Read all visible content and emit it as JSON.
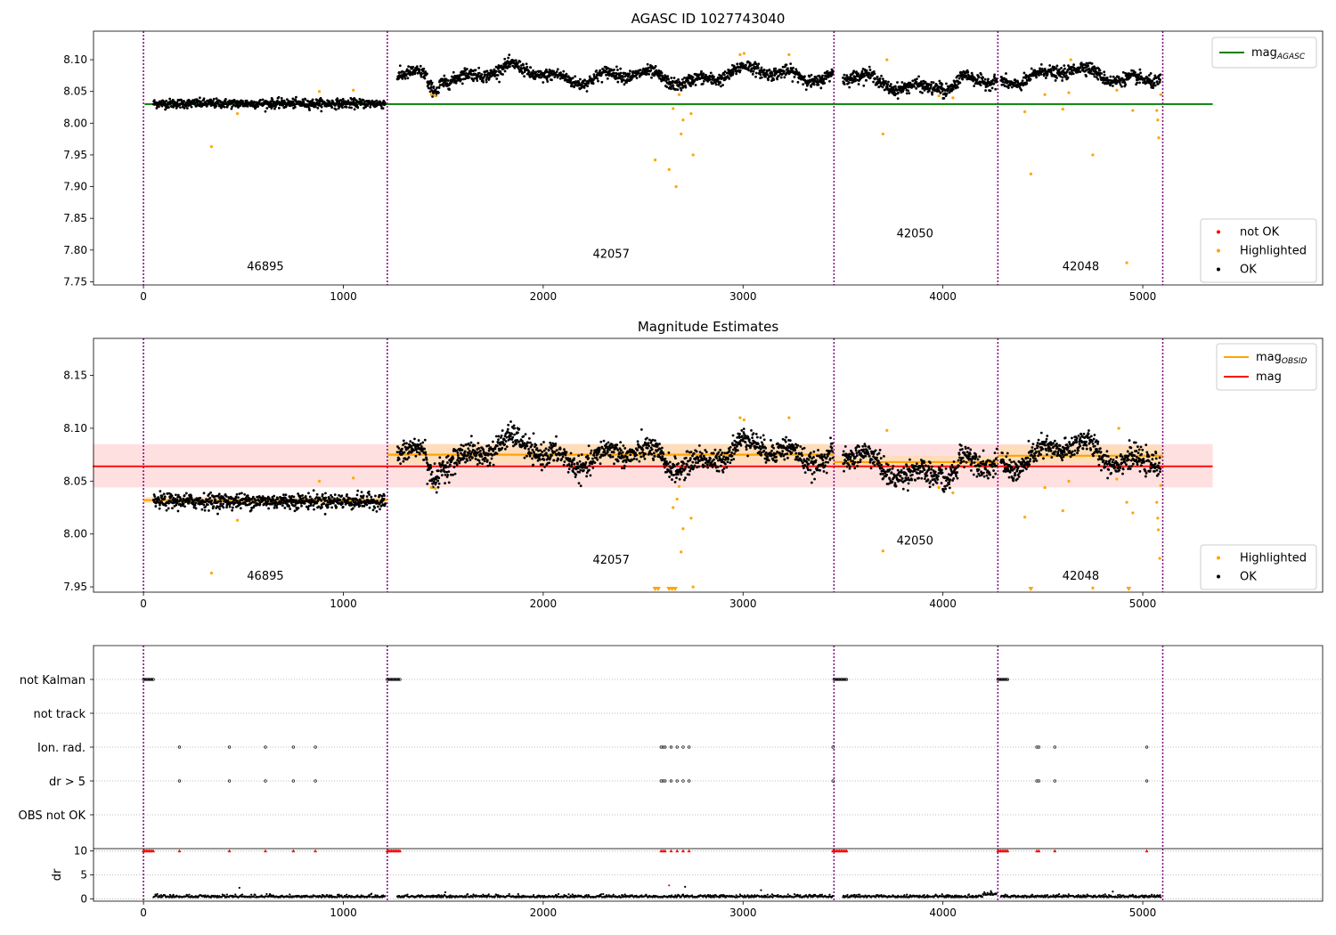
{
  "figure": {
    "title": "AGASC ID 1027743040"
  },
  "obsids": [
    {
      "label": "46895",
      "x": 610,
      "start": 0
    },
    {
      "label": "42057",
      "x": 2340,
      "start": 1220
    },
    {
      "label": "42050",
      "x": 3860,
      "start": 3455
    },
    {
      "label": "42048",
      "x": 4690,
      "start": 4275
    }
  ],
  "boundaries": [
    0,
    1220,
    3455,
    4275,
    5100
  ],
  "colors": {
    "ok": "#000000",
    "highlighted": "#ffa500",
    "not_ok": "#ff0000",
    "agasc_line": "#008000",
    "mag_line": "#ff0000",
    "obsid_line": "#ffa500",
    "boundary": "#800080",
    "band": "#ffcccc"
  },
  "chart_data": [
    {
      "type": "scatter",
      "title": "",
      "xlim": [
        -250,
        5900
      ],
      "ylim": [
        7.745,
        8.145
      ],
      "xticks": [
        0,
        1000,
        2000,
        3000,
        4000,
        5000
      ],
      "yticks": [
        7.75,
        7.8,
        7.85,
        7.9,
        7.95,
        8.0,
        8.05,
        8.1
      ],
      "agasc_mag": 8.03,
      "agasc_x_range": [
        50,
        5350
      ],
      "legend_top": [
        {
          "label": "mag",
          "sub": "AGASC",
          "kind": "line",
          "color": "#008000"
        }
      ],
      "legend_bottom": [
        {
          "label": "not OK",
          "kind": "dot",
          "color": "#ff0000"
        },
        {
          "label": "Highlighted",
          "kind": "dot",
          "color": "#ffa500"
        },
        {
          "label": "OK",
          "kind": "dot",
          "color": "#000000"
        }
      ],
      "obsid_label_y": [
        7.768,
        7.788,
        7.82,
        7.768
      ],
      "series": [
        {
          "obs": "46895",
          "x_range": [
            50,
            1210
          ],
          "mean": 8.031,
          "noise": 0.006
        },
        {
          "obs": "42057",
          "x_range": [
            1270,
            3450
          ],
          "mean": 8.075,
          "noise": 0.008
        },
        {
          "obs": "42050",
          "x_range": [
            3500,
            4270
          ],
          "mean": 8.066,
          "noise": 0.008
        },
        {
          "obs": "42048",
          "x_range": [
            4290,
            5090
          ],
          "mean": 8.073,
          "noise": 0.008
        }
      ],
      "highlighted_points": [
        {
          "x": 340,
          "y": 7.963
        },
        {
          "x": 470,
          "y": 8.015
        },
        {
          "x": 880,
          "y": 8.05
        },
        {
          "x": 1050,
          "y": 8.052
        },
        {
          "x": 1440,
          "y": 8.045
        },
        {
          "x": 1460,
          "y": 8.043
        },
        {
          "x": 2560,
          "y": 7.942
        },
        {
          "x": 2630,
          "y": 7.927
        },
        {
          "x": 2650,
          "y": 8.023
        },
        {
          "x": 2665,
          "y": 7.9
        },
        {
          "x": 2680,
          "y": 8.045
        },
        {
          "x": 2690,
          "y": 7.983
        },
        {
          "x": 2700,
          "y": 8.005
        },
        {
          "x": 2740,
          "y": 8.015
        },
        {
          "x": 2750,
          "y": 7.95
        },
        {
          "x": 2985,
          "y": 8.108
        },
        {
          "x": 3005,
          "y": 8.11
        },
        {
          "x": 3230,
          "y": 8.108
        },
        {
          "x": 3700,
          "y": 7.983
        },
        {
          "x": 3720,
          "y": 8.1
        },
        {
          "x": 3980,
          "y": 8.043
        },
        {
          "x": 4050,
          "y": 8.04
        },
        {
          "x": 4410,
          "y": 8.018
        },
        {
          "x": 4440,
          "y": 7.92
        },
        {
          "x": 4510,
          "y": 8.045
        },
        {
          "x": 4600,
          "y": 8.022
        },
        {
          "x": 4630,
          "y": 8.048
        },
        {
          "x": 4640,
          "y": 8.1
        },
        {
          "x": 4750,
          "y": 7.95
        },
        {
          "x": 4870,
          "y": 8.052
        },
        {
          "x": 4920,
          "y": 7.78
        },
        {
          "x": 4950,
          "y": 8.02
        },
        {
          "x": 5070,
          "y": 8.02
        },
        {
          "x": 5075,
          "y": 8.005
        },
        {
          "x": 5080,
          "y": 7.977
        },
        {
          "x": 5090,
          "y": 8.045
        }
      ]
    },
    {
      "type": "scatter",
      "title": "Magnitude Estimates",
      "xlim": [
        -250,
        5900
      ],
      "ylim": [
        7.945,
        8.185
      ],
      "xticks": [
        0,
        1000,
        2000,
        3000,
        4000,
        5000
      ],
      "yticks": [
        7.95,
        8.0,
        8.05,
        8.1,
        8.15
      ],
      "mag": 8.064,
      "mag_band": [
        8.044,
        8.085
      ],
      "mag_x_range": [
        0,
        5350
      ],
      "obsid_mags": [
        {
          "x_range": [
            0,
            1220
          ],
          "mag": 8.032,
          "band": [
            8.029,
            8.035
          ]
        },
        {
          "x_range": [
            1220,
            3455
          ],
          "mag": 8.075,
          "band": [
            8.066,
            8.085
          ]
        },
        {
          "x_range": [
            3455,
            4275
          ],
          "mag": 8.068,
          "band": [
            8.062,
            8.074
          ]
        },
        {
          "x_range": [
            4275,
            5100
          ],
          "mag": 8.074,
          "band": [
            8.066,
            8.084
          ]
        }
      ],
      "legend_top": [
        {
          "label": "mag",
          "sub": "OBSID",
          "kind": "line",
          "color": "#ffa500"
        },
        {
          "label": "mag",
          "sub": "",
          "kind": "line",
          "color": "#ff0000"
        }
      ],
      "legend_bottom": [
        {
          "label": "Highlighted",
          "kind": "dot",
          "color": "#ffa500"
        },
        {
          "label": "OK",
          "kind": "dot",
          "color": "#000000"
        }
      ],
      "obsid_label_y": [
        7.957,
        7.972,
        7.99,
        7.957
      ],
      "series": [
        {
          "obs": "46895",
          "x_range": [
            50,
            1210
          ],
          "mean": 8.031,
          "noise": 0.006
        },
        {
          "obs": "42057",
          "x_range": [
            1270,
            3450
          ],
          "mean": 8.075,
          "noise": 0.009
        },
        {
          "obs": "42050",
          "x_range": [
            3500,
            4270
          ],
          "mean": 8.066,
          "noise": 0.009
        },
        {
          "obs": "42048",
          "x_range": [
            4290,
            5090
          ],
          "mean": 8.073,
          "noise": 0.009
        }
      ],
      "highlighted_points": [
        {
          "x": 340,
          "y": 7.963
        },
        {
          "x": 470,
          "y": 8.013
        },
        {
          "x": 880,
          "y": 8.05
        },
        {
          "x": 1050,
          "y": 8.053
        },
        {
          "x": 1440,
          "y": 8.044
        },
        {
          "x": 1460,
          "y": 8.043
        },
        {
          "x": 2650,
          "y": 8.025
        },
        {
          "x": 2680,
          "y": 8.045
        },
        {
          "x": 2670,
          "y": 8.033
        },
        {
          "x": 2690,
          "y": 7.983
        },
        {
          "x": 2700,
          "y": 8.005
        },
        {
          "x": 2750,
          "y": 7.95
        },
        {
          "x": 2740,
          "y": 8.015
        },
        {
          "x": 2985,
          "y": 8.11
        },
        {
          "x": 3005,
          "y": 8.108
        },
        {
          "x": 3230,
          "y": 8.11
        },
        {
          "x": 3700,
          "y": 7.984
        },
        {
          "x": 3720,
          "y": 8.098
        },
        {
          "x": 3980,
          "y": 8.044
        },
        {
          "x": 4050,
          "y": 8.039
        },
        {
          "x": 4410,
          "y": 8.016
        },
        {
          "x": 4510,
          "y": 8.044
        },
        {
          "x": 4600,
          "y": 8.022
        },
        {
          "x": 4630,
          "y": 8.05
        },
        {
          "x": 4750,
          "y": 7.949
        },
        {
          "x": 4870,
          "y": 8.052
        },
        {
          "x": 4880,
          "y": 8.1
        },
        {
          "x": 4950,
          "y": 8.02
        },
        {
          "x": 4920,
          "y": 8.03
        },
        {
          "x": 5070,
          "y": 8.03
        },
        {
          "x": 5075,
          "y": 8.015
        },
        {
          "x": 5078,
          "y": 8.004
        },
        {
          "x": 5085,
          "y": 7.977
        },
        {
          "x": 5090,
          "y": 8.046
        }
      ],
      "clipped_points_x": [
        2560,
        2575,
        2630,
        2645,
        2660,
        4440,
        4930
      ]
    },
    {
      "type": "scatter",
      "title": "",
      "xlim": [
        -250,
        5900
      ],
      "categories": [
        "not Kalman",
        "not track",
        "Ion. rad.",
        "dr > 5",
        "OBS not OK"
      ],
      "not_kalman_ranges": [
        [
          0,
          55
        ],
        [
          1220,
          1285
        ],
        [
          3455,
          3520
        ],
        [
          4275,
          4330
        ]
      ],
      "ion_rad_points": [
        180,
        430,
        610,
        750,
        860,
        2590,
        2600,
        2610,
        2640,
        2670,
        2700,
        2730,
        3450,
        4470,
        4480,
        4560,
        5020
      ]
    },
    {
      "type": "scatter",
      "title": "",
      "ylabel": "dr",
      "xlim": [
        -250,
        5900
      ],
      "ylim": [
        -0.5,
        10.5
      ],
      "xticks": [
        0,
        1000,
        2000,
        3000,
        4000,
        5000
      ],
      "yticks": [
        0,
        5,
        10
      ],
      "dr_limit": 10,
      "spikes": [
        {
          "x": 480,
          "y": 2.3
        },
        {
          "x": 2630,
          "y": 2.8
        },
        {
          "x": 2710,
          "y": 2.5
        },
        {
          "x": 4850,
          "y": 1.5
        },
        {
          "x": 4240,
          "y": 1.6
        },
        {
          "x": 3090,
          "y": 1.8
        }
      ]
    }
  ]
}
